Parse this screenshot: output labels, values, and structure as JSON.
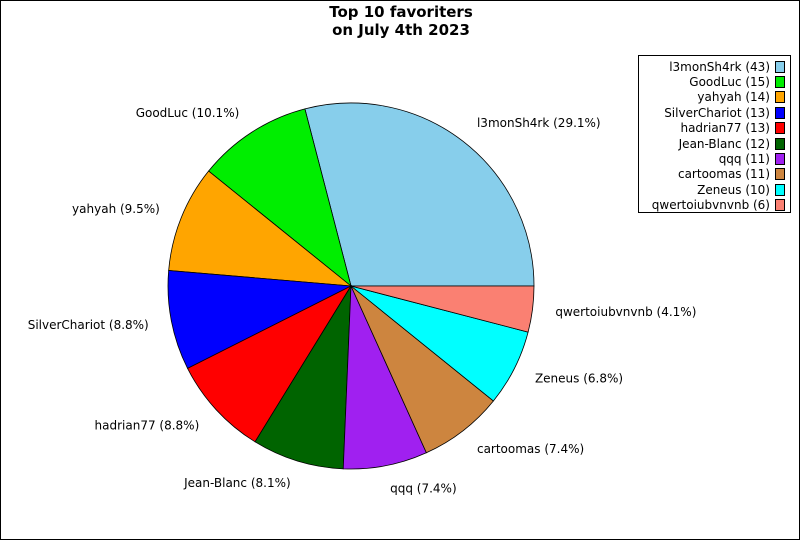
{
  "chart_data": {
    "type": "pie",
    "title_lines": [
      "Top 10 favoriters",
      "on July 4th 2023"
    ],
    "slices": [
      {
        "name": "l3monSh4rk",
        "value": 43,
        "percent_label": "l3monSh4rk (29.1%)",
        "legend_label": "l3monSh4rk (43)",
        "color": "#87CEEB"
      },
      {
        "name": "GoodLuc",
        "value": 15,
        "percent_label": "GoodLuc (10.1%)",
        "legend_label": "GoodLuc (15)",
        "color": "#00EE00"
      },
      {
        "name": "yahyah",
        "value": 14,
        "percent_label": "yahyah (9.5%)",
        "legend_label": "yahyah (14)",
        "color": "#FFA500"
      },
      {
        "name": "SilverChariot",
        "value": 13,
        "percent_label": "SilverChariot (8.8%)",
        "legend_label": "SilverChariot (13)",
        "color": "#0000FF"
      },
      {
        "name": "hadrian77",
        "value": 13,
        "percent_label": "hadrian77 (8.8%)",
        "legend_label": "hadrian77 (13)",
        "color": "#FF0000"
      },
      {
        "name": "Jean-Blanc",
        "value": 12,
        "percent_label": "Jean-Blanc (8.1%)",
        "legend_label": "Jean-Blanc (12)",
        "color": "#006400"
      },
      {
        "name": "qqq",
        "value": 11,
        "percent_label": "qqq (7.4%)",
        "legend_label": "qqq (11)",
        "color": "#A020F0"
      },
      {
        "name": "cartoomas",
        "value": 11,
        "percent_label": "cartoomas (7.4%)",
        "legend_label": "cartoomas (11)",
        "color": "#CD853F"
      },
      {
        "name": "Zeneus",
        "value": 10,
        "percent_label": "Zeneus (6.8%)",
        "legend_label": "Zeneus (10)",
        "color": "#00FFFF"
      },
      {
        "name": "qwertoiubvnvnb",
        "value": 6,
        "percent_label": "qwertoiubvnvnb (4.1%)",
        "legend_label": "qwertoiubvnvnb (6)",
        "color": "#FA8072"
      }
    ],
    "start_angle": "east (3 o'clock)",
    "direction": "counterclockwise",
    "legend_position": "top-right"
  }
}
